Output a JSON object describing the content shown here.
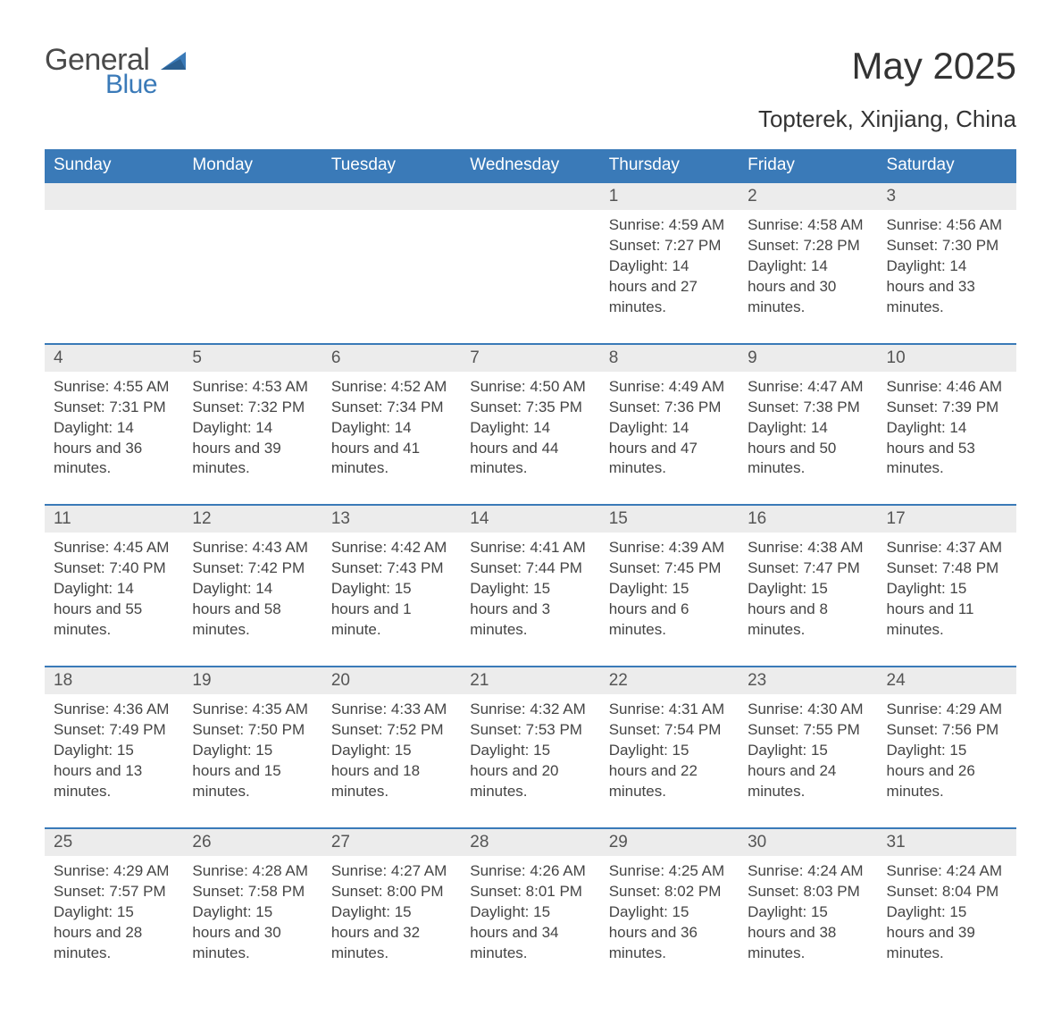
{
  "logo": {
    "general": "General",
    "blue": "Blue"
  },
  "title": "May 2025",
  "subtitle": "Topterek, Xinjiang, China",
  "colors": {
    "header_bg": "#3a7ab8",
    "header_text": "#ffffff",
    "daynum_bg": "#ececec",
    "daynum_text": "#555555",
    "body_text": "#444444",
    "row_border": "#3a7ab8",
    "page_bg": "#ffffff",
    "logo_gray": "#4a4a4a",
    "logo_blue": "#3a7ab8"
  },
  "weekdays": [
    "Sunday",
    "Monday",
    "Tuesday",
    "Wednesday",
    "Thursday",
    "Friday",
    "Saturday"
  ],
  "weeks": [
    [
      null,
      null,
      null,
      null,
      {
        "n": "1",
        "sunrise": "4:59 AM",
        "sunset": "7:27 PM",
        "daylight": "14 hours and 27 minutes."
      },
      {
        "n": "2",
        "sunrise": "4:58 AM",
        "sunset": "7:28 PM",
        "daylight": "14 hours and 30 minutes."
      },
      {
        "n": "3",
        "sunrise": "4:56 AM",
        "sunset": "7:30 PM",
        "daylight": "14 hours and 33 minutes."
      }
    ],
    [
      {
        "n": "4",
        "sunrise": "4:55 AM",
        "sunset": "7:31 PM",
        "daylight": "14 hours and 36 minutes."
      },
      {
        "n": "5",
        "sunrise": "4:53 AM",
        "sunset": "7:32 PM",
        "daylight": "14 hours and 39 minutes."
      },
      {
        "n": "6",
        "sunrise": "4:52 AM",
        "sunset": "7:34 PM",
        "daylight": "14 hours and 41 minutes."
      },
      {
        "n": "7",
        "sunrise": "4:50 AM",
        "sunset": "7:35 PM",
        "daylight": "14 hours and 44 minutes."
      },
      {
        "n": "8",
        "sunrise": "4:49 AM",
        "sunset": "7:36 PM",
        "daylight": "14 hours and 47 minutes."
      },
      {
        "n": "9",
        "sunrise": "4:47 AM",
        "sunset": "7:38 PM",
        "daylight": "14 hours and 50 minutes."
      },
      {
        "n": "10",
        "sunrise": "4:46 AM",
        "sunset": "7:39 PM",
        "daylight": "14 hours and 53 minutes."
      }
    ],
    [
      {
        "n": "11",
        "sunrise": "4:45 AM",
        "sunset": "7:40 PM",
        "daylight": "14 hours and 55 minutes."
      },
      {
        "n": "12",
        "sunrise": "4:43 AM",
        "sunset": "7:42 PM",
        "daylight": "14 hours and 58 minutes."
      },
      {
        "n": "13",
        "sunrise": "4:42 AM",
        "sunset": "7:43 PM",
        "daylight": "15 hours and 1 minute."
      },
      {
        "n": "14",
        "sunrise": "4:41 AM",
        "sunset": "7:44 PM",
        "daylight": "15 hours and 3 minutes."
      },
      {
        "n": "15",
        "sunrise": "4:39 AM",
        "sunset": "7:45 PM",
        "daylight": "15 hours and 6 minutes."
      },
      {
        "n": "16",
        "sunrise": "4:38 AM",
        "sunset": "7:47 PM",
        "daylight": "15 hours and 8 minutes."
      },
      {
        "n": "17",
        "sunrise": "4:37 AM",
        "sunset": "7:48 PM",
        "daylight": "15 hours and 11 minutes."
      }
    ],
    [
      {
        "n": "18",
        "sunrise": "4:36 AM",
        "sunset": "7:49 PM",
        "daylight": "15 hours and 13 minutes."
      },
      {
        "n": "19",
        "sunrise": "4:35 AM",
        "sunset": "7:50 PM",
        "daylight": "15 hours and 15 minutes."
      },
      {
        "n": "20",
        "sunrise": "4:33 AM",
        "sunset": "7:52 PM",
        "daylight": "15 hours and 18 minutes."
      },
      {
        "n": "21",
        "sunrise": "4:32 AM",
        "sunset": "7:53 PM",
        "daylight": "15 hours and 20 minutes."
      },
      {
        "n": "22",
        "sunrise": "4:31 AM",
        "sunset": "7:54 PM",
        "daylight": "15 hours and 22 minutes."
      },
      {
        "n": "23",
        "sunrise": "4:30 AM",
        "sunset": "7:55 PM",
        "daylight": "15 hours and 24 minutes."
      },
      {
        "n": "24",
        "sunrise": "4:29 AM",
        "sunset": "7:56 PM",
        "daylight": "15 hours and 26 minutes."
      }
    ],
    [
      {
        "n": "25",
        "sunrise": "4:29 AM",
        "sunset": "7:57 PM",
        "daylight": "15 hours and 28 minutes."
      },
      {
        "n": "26",
        "sunrise": "4:28 AM",
        "sunset": "7:58 PM",
        "daylight": "15 hours and 30 minutes."
      },
      {
        "n": "27",
        "sunrise": "4:27 AM",
        "sunset": "8:00 PM",
        "daylight": "15 hours and 32 minutes."
      },
      {
        "n": "28",
        "sunrise": "4:26 AM",
        "sunset": "8:01 PM",
        "daylight": "15 hours and 34 minutes."
      },
      {
        "n": "29",
        "sunrise": "4:25 AM",
        "sunset": "8:02 PM",
        "daylight": "15 hours and 36 minutes."
      },
      {
        "n": "30",
        "sunrise": "4:24 AM",
        "sunset": "8:03 PM",
        "daylight": "15 hours and 38 minutes."
      },
      {
        "n": "31",
        "sunrise": "4:24 AM",
        "sunset": "8:04 PM",
        "daylight": "15 hours and 39 minutes."
      }
    ]
  ],
  "labels": {
    "sunrise": "Sunrise: ",
    "sunset": "Sunset: ",
    "daylight": "Daylight: "
  }
}
